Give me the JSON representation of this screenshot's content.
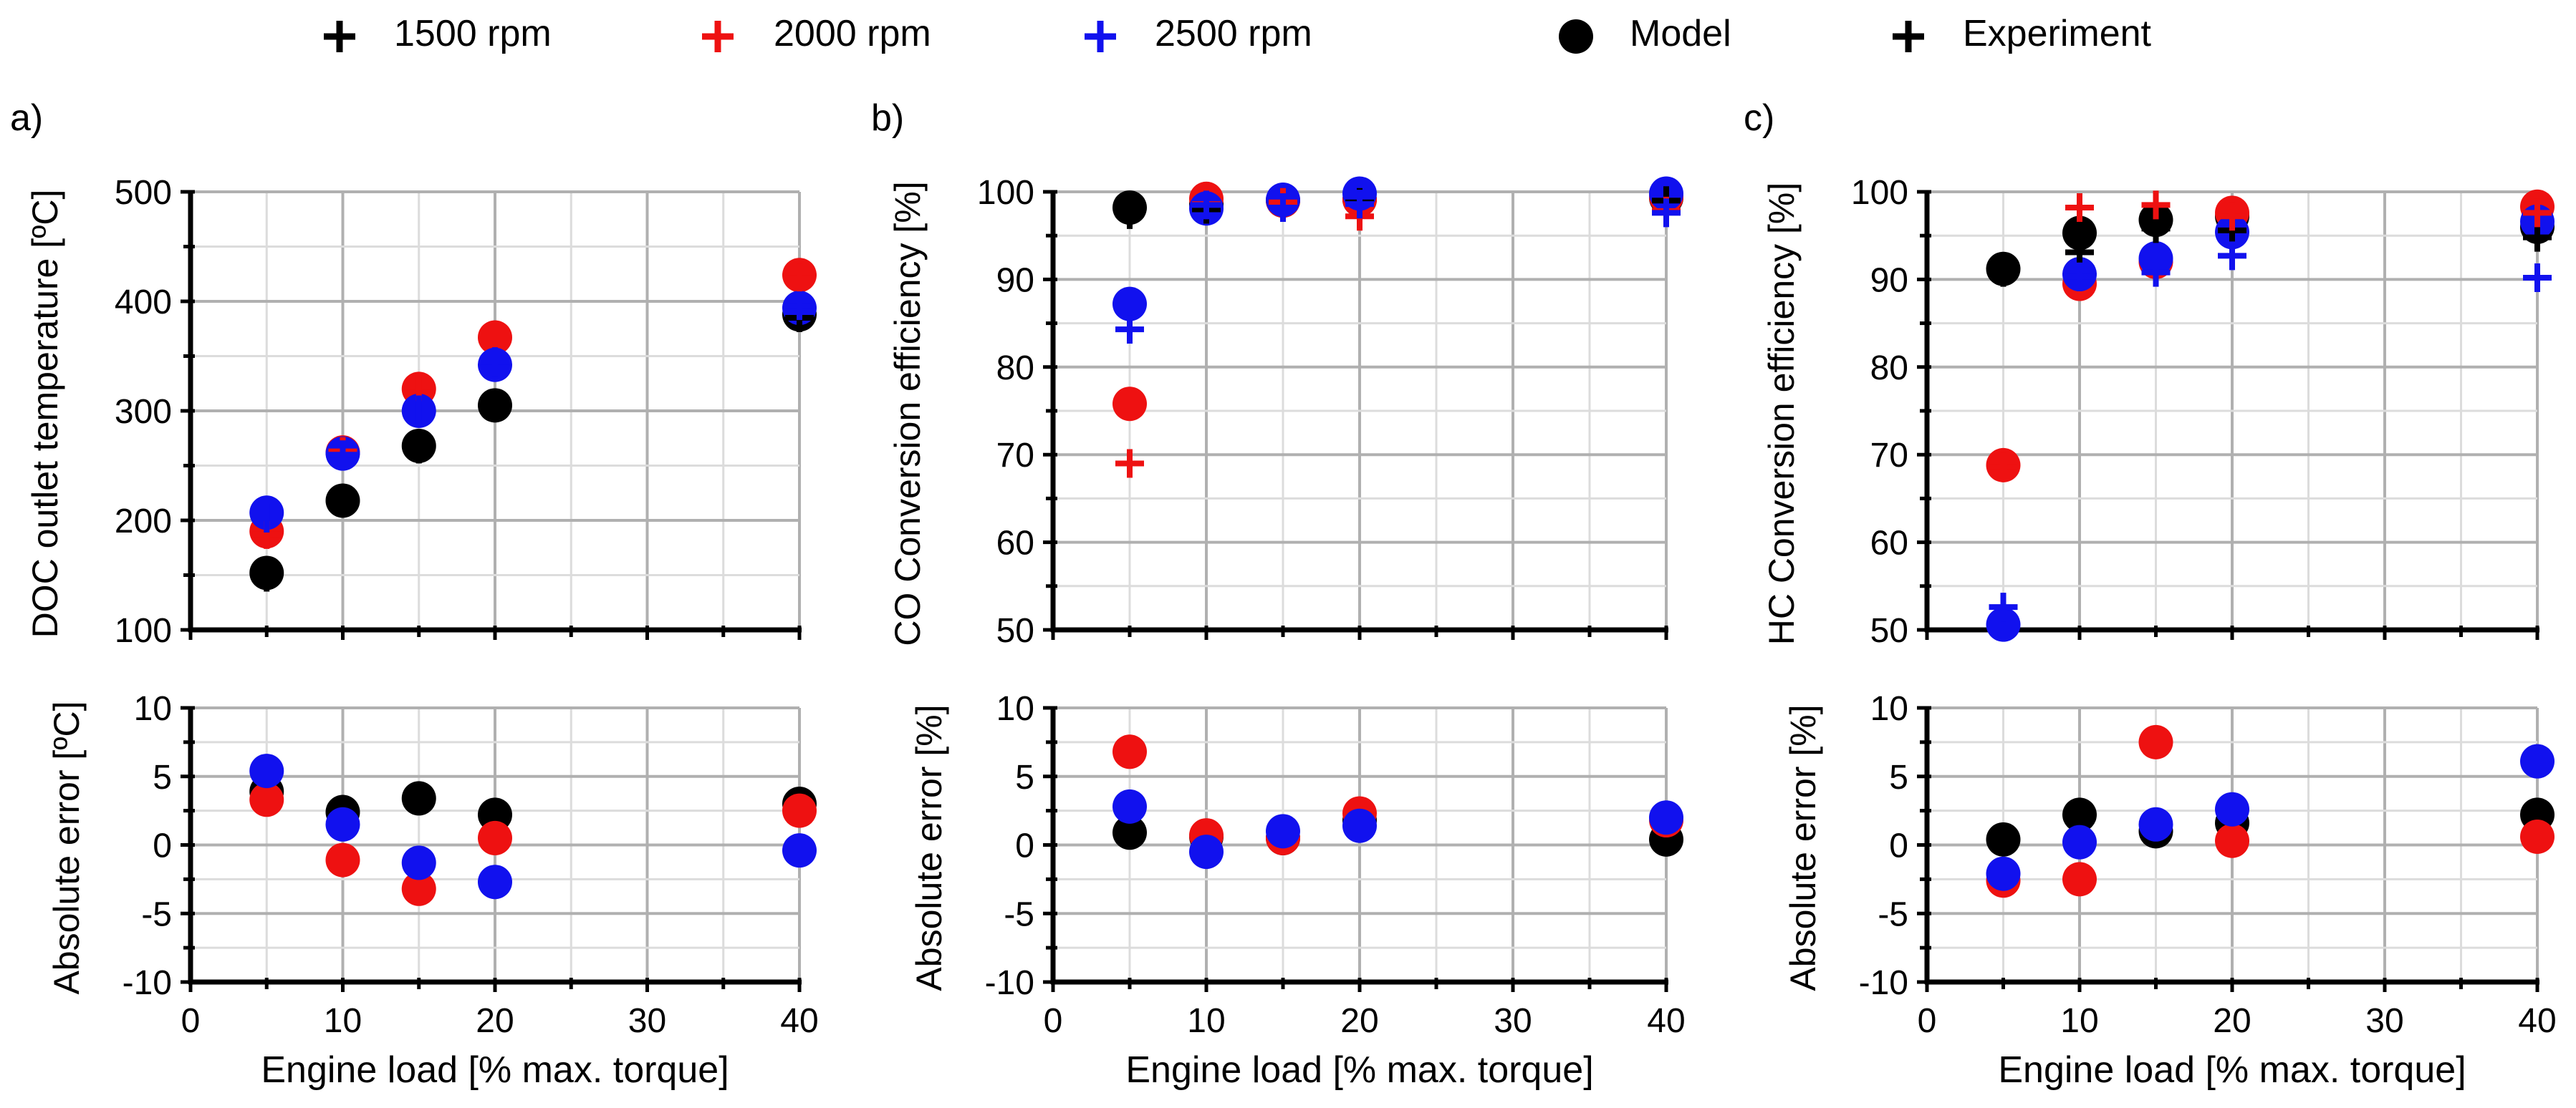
{
  "legend": {
    "items": [
      {
        "label": "1500 rpm",
        "marker": "plus",
        "color": "#000000"
      },
      {
        "label": "2000 rpm",
        "marker": "plus",
        "color": "#ee1111"
      },
      {
        "label": "2500 rpm",
        "marker": "plus",
        "color": "#1111ee"
      },
      {
        "label": "Model",
        "marker": "circle",
        "color": "#000000"
      },
      {
        "label": "Experiment",
        "marker": "plus",
        "color": "#000000"
      }
    ]
  },
  "colors": {
    "1500": "#000000",
    "2000": "#ee1111",
    "2500": "#1111ee",
    "grid": "#b3b3b3"
  },
  "chart_data": [
    {
      "type": "scatter",
      "panel": "a)",
      "title": "",
      "xlabel": "Engine load [% max. torque]",
      "top": {
        "ylabel": "DOC outlet temperature [ºC]",
        "ylim": [
          100,
          500
        ],
        "yticks": [
          100,
          200,
          300,
          400,
          500
        ],
        "series": [
          {
            "name": "1500 rpm",
            "kind": "model",
            "x": [
              5,
              10,
              15,
              20,
              40
            ],
            "y": [
              152,
              218,
              268,
              305,
              388
            ]
          },
          {
            "name": "1500 rpm",
            "kind": "experiment",
            "x": [
              5,
              10,
              15,
              20,
              40
            ],
            "y": [
              148,
              216,
              265,
              303,
              385
            ]
          },
          {
            "name": "2000 rpm",
            "kind": "model",
            "x": [
              5,
              10,
              15,
              20,
              40
            ],
            "y": [
              190,
              262,
              320,
              367,
              424
            ]
          },
          {
            "name": "2000 rpm",
            "kind": "experiment",
            "x": [
              5,
              10,
              15,
              20,
              40
            ],
            "y": [
              187,
              263,
              322,
              366,
              421
            ]
          },
          {
            "name": "2500 rpm",
            "kind": "model",
            "x": [
              5,
              10,
              15,
              20,
              40
            ],
            "y": [
              207,
              261,
              300,
              342,
              394
            ]
          },
          {
            "name": "2500 rpm",
            "kind": "experiment",
            "x": [
              5,
              10,
              15,
              20,
              40
            ],
            "y": [
              202,
              260,
              301,
              345,
              396
            ]
          }
        ]
      },
      "bottom": {
        "ylabel": "Absolute error [ºC]",
        "ylim": [
          -10,
          10
        ],
        "yticks": [
          -10,
          -5,
          0,
          5,
          10
        ],
        "series": [
          {
            "name": "1500 rpm",
            "x": [
              5,
              10,
              15,
              20,
              40
            ],
            "y": [
              3.9,
              2.4,
              3.4,
              2.2,
              3.0
            ]
          },
          {
            "name": "2000 rpm",
            "x": [
              5,
              10,
              15,
              20,
              40
            ],
            "y": [
              3.3,
              -1.1,
              -3.2,
              0.5,
              2.5
            ]
          },
          {
            "name": "2500 rpm",
            "x": [
              5,
              10,
              15,
              20,
              40
            ],
            "y": [
              5.4,
              1.5,
              -1.3,
              -2.7,
              -0.4
            ]
          }
        ]
      },
      "xticks": [
        0,
        10,
        20,
        30,
        40
      ]
    },
    {
      "type": "scatter",
      "panel": "b)",
      "title": "",
      "xlabel": "Engine load [% max. torque]",
      "top": {
        "ylabel": "CO Conversion efficiency [%]",
        "ylim": [
          50,
          100
        ],
        "yticks": [
          50,
          60,
          70,
          80,
          90,
          100
        ],
        "series": [
          {
            "name": "1500 rpm",
            "kind": "model",
            "x": [
              5,
              10,
              15,
              20,
              40
            ],
            "y": [
              98.2,
              98.6,
              99.0,
              99.1,
              99.3
            ]
          },
          {
            "name": "1500 rpm",
            "kind": "experiment",
            "x": [
              5,
              10,
              15,
              20,
              40
            ],
            "y": [
              97.4,
              98.0,
              98.6,
              98.8,
              99.0
            ]
          },
          {
            "name": "2000 rpm",
            "kind": "model",
            "x": [
              5,
              10,
              15,
              20,
              40
            ],
            "y": [
              75.8,
              99.2,
              99.0,
              99.1,
              99.4
            ]
          },
          {
            "name": "2000 rpm",
            "kind": "experiment",
            "x": [
              5,
              10,
              15,
              20,
              40
            ],
            "y": [
              69.0,
              98.6,
              98.8,
              97.2,
              97.8
            ]
          },
          {
            "name": "2500 rpm",
            "kind": "model",
            "x": [
              5,
              10,
              15,
              20,
              40
            ],
            "y": [
              87.2,
              98.1,
              99.1,
              99.8,
              99.8
            ]
          },
          {
            "name": "2500 rpm",
            "kind": "experiment",
            "x": [
              5,
              10,
              15,
              20,
              40
            ],
            "y": [
              84.3,
              98.5,
              98.2,
              98.6,
              97.6
            ]
          }
        ]
      },
      "bottom": {
        "ylabel": "Absolute error [%]",
        "ylim": [
          -10,
          10
        ],
        "yticks": [
          -10,
          -5,
          0,
          5,
          10
        ],
        "series": [
          {
            "name": "1500 rpm",
            "x": [
              5,
              10,
              15,
              20,
              40
            ],
            "y": [
              0.9,
              0.6,
              0.5,
              1.8,
              0.4
            ]
          },
          {
            "name": "2000 rpm",
            "x": [
              5,
              10,
              15,
              20,
              40
            ],
            "y": [
              6.8,
              0.7,
              0.5,
              2.3,
              1.8
            ]
          },
          {
            "name": "2500 rpm",
            "x": [
              5,
              10,
              15,
              20,
              40
            ],
            "y": [
              2.8,
              -0.5,
              1.0,
              1.4,
              2.0
            ]
          }
        ]
      },
      "xticks": [
        0,
        10,
        20,
        30,
        40
      ]
    },
    {
      "type": "scatter",
      "panel": "c)",
      "title": "",
      "xlabel": "Engine load [% max. torque]",
      "top": {
        "ylabel": "HC Conversion efficiency [%]",
        "ylim": [
          50,
          100
        ],
        "yticks": [
          50,
          60,
          70,
          80,
          90,
          100
        ],
        "series": [
          {
            "name": "1500 rpm",
            "kind": "model",
            "x": [
              5,
              10,
              15,
              20,
              40
            ],
            "y": [
              91.2,
              95.3,
              96.8,
              97.2,
              96.0
            ]
          },
          {
            "name": "1500 rpm",
            "kind": "experiment",
            "x": [
              5,
              10,
              15,
              20,
              40
            ],
            "y": [
              90.8,
              93.1,
              95.8,
              95.6,
              94.8
            ]
          },
          {
            "name": "2000 rpm",
            "kind": "model",
            "x": [
              5,
              10,
              15,
              20,
              40
            ],
            "y": [
              68.8,
              89.5,
              92.0,
              97.6,
              98.3
            ]
          },
          {
            "name": "2000 rpm",
            "kind": "experiment",
            "x": [
              5,
              10,
              15,
              20,
              40
            ],
            "y": [
              68.6,
              98.2,
              98.5,
              97.2,
              97.6
            ]
          },
          {
            "name": "2500 rpm",
            "kind": "model",
            "x": [
              5,
              10,
              15,
              20,
              40
            ],
            "y": [
              50.6,
              90.6,
              92.4,
              95.4,
              96.6
            ]
          },
          {
            "name": "2500 rpm",
            "kind": "experiment",
            "x": [
              5,
              10,
              15,
              20,
              40
            ],
            "y": [
              52.6,
              90.3,
              90.8,
              92.7,
              90.2
            ]
          }
        ]
      },
      "bottom": {
        "ylabel": "Absolute error [%]",
        "ylim": [
          -10,
          10
        ],
        "yticks": [
          -10,
          -5,
          0,
          5,
          10
        ],
        "series": [
          {
            "name": "1500 rpm",
            "x": [
              5,
              10,
              15,
              20,
              40
            ],
            "y": [
              0.4,
              2.2,
              1.0,
              1.6,
              2.2
            ]
          },
          {
            "name": "2000 rpm",
            "x": [
              5,
              10,
              15,
              20,
              40
            ],
            "y": [
              -2.6,
              -2.5,
              7.5,
              0.3,
              0.6
            ]
          },
          {
            "name": "2500 rpm",
            "x": [
              5,
              10,
              15,
              20,
              40
            ],
            "y": [
              -2.1,
              0.2,
              1.5,
              2.6,
              6.1
            ]
          }
        ]
      },
      "xticks": [
        0,
        10,
        20,
        30,
        40
      ]
    }
  ]
}
